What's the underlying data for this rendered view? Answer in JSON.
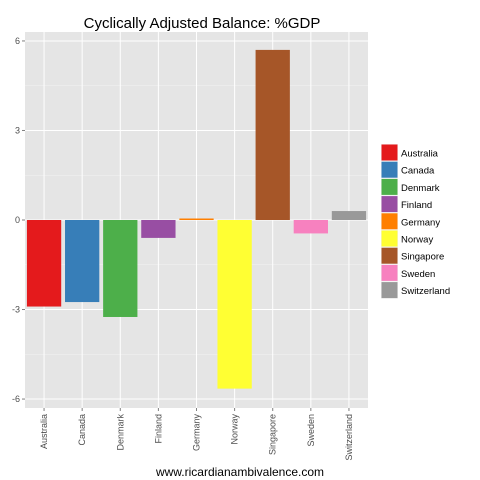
{
  "chart_data": {
    "type": "bar",
    "title": "Cyclically Adjusted Balance: %GDP",
    "xlabel": "",
    "ylabel": "",
    "categories": [
      "Australia",
      "Canada",
      "Denmark",
      "Finland",
      "Germany",
      "Norway",
      "Singapore",
      "Sweden",
      "Switzerland"
    ],
    "values": [
      -2.9,
      -2.75,
      -3.25,
      -0.6,
      0.05,
      -5.65,
      5.7,
      -0.45,
      0.3
    ],
    "colors": [
      "#E41A1C",
      "#377EB8",
      "#4DAF4A",
      "#984EA3",
      "#FF7F00",
      "#FFFF33",
      "#A65628",
      "#F781BF",
      "#999999"
    ],
    "ylim": [
      -6.3,
      6.3
    ],
    "yticks": [
      -6,
      -3,
      0,
      3,
      6
    ],
    "grid": true,
    "legend": {
      "placement": "right",
      "entries": [
        "Australia",
        "Canada",
        "Denmark",
        "Finland",
        "Germany",
        "Norway",
        "Singapore",
        "Sweden",
        "Switzerland"
      ]
    },
    "caption": "www.ricardianambivalence.com"
  }
}
